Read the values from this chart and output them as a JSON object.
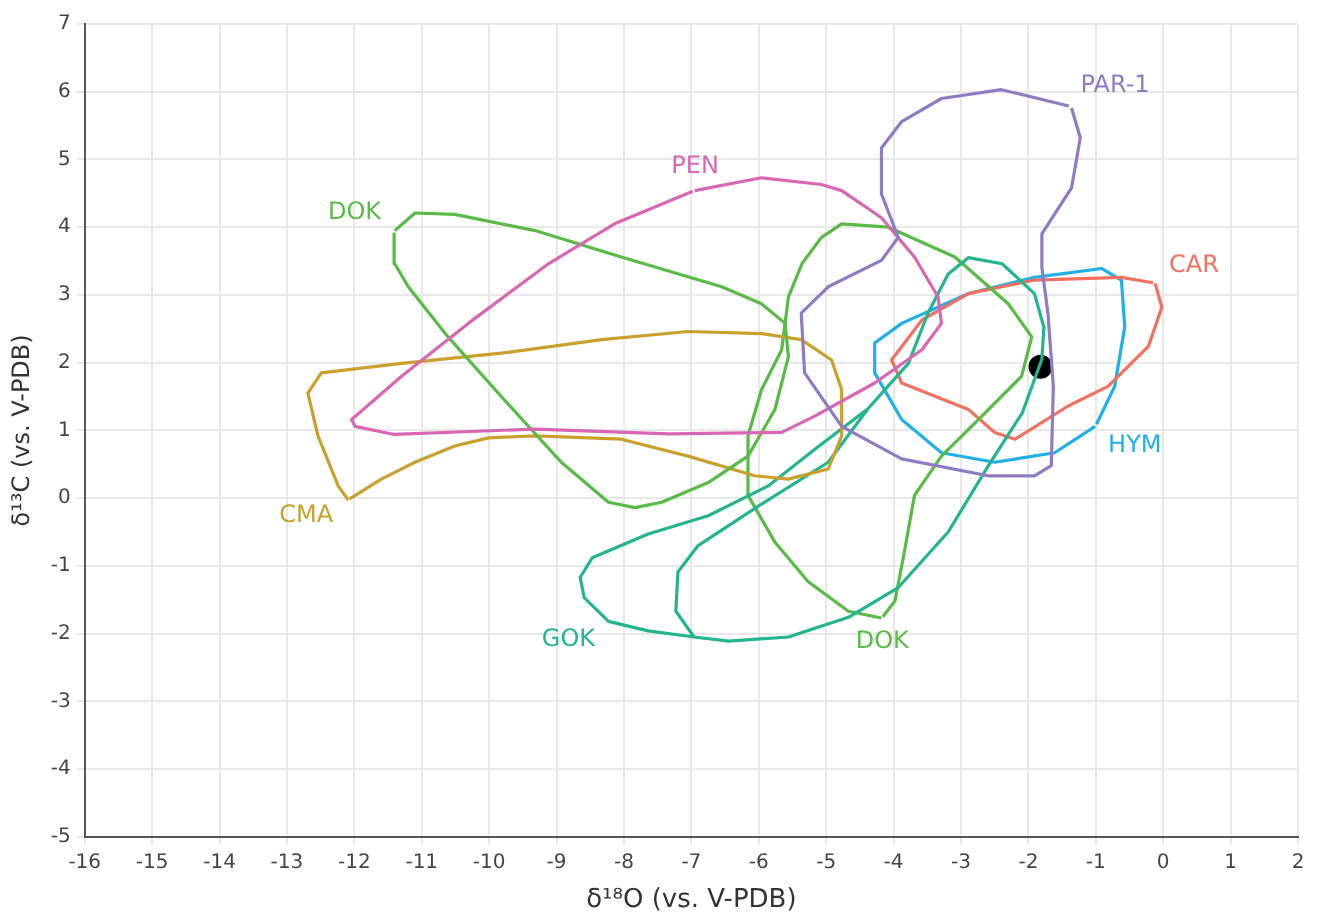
{
  "chart_data": {
    "type": "line",
    "xlabel": "δ¹⁸O (vs. V-PDB)",
    "ylabel": "δ¹³C (vs. V-PDB)",
    "xlim": [
      -16,
      2
    ],
    "ylim": [
      -5,
      7
    ],
    "xticks": [
      -16,
      -15,
      -14,
      -13,
      -12,
      -11,
      -10,
      -9,
      -8,
      -7,
      -6,
      -5,
      -4,
      -3,
      -2,
      -1,
      0,
      1,
      2
    ],
    "yticks": [
      -5,
      -4,
      -3,
      -2,
      -1,
      0,
      1,
      2,
      3,
      4,
      5,
      6,
      7
    ],
    "grid": true,
    "legend": false,
    "series": [
      {
        "name": "PAR-1",
        "color": "#8e7cc3",
        "x": [
          -1.36,
          -1.23,
          -1.36,
          -1.8,
          -1.8,
          -1.71,
          -1.63,
          -1.66,
          -1.91,
          -2.6,
          -3.88,
          -4.77,
          -5.32,
          -5.37,
          -4.97,
          -4.18,
          -3.93,
          -4.18,
          -4.18,
          -3.88,
          -3.29,
          -2.4,
          -1.4
        ],
        "values": [
          5.76,
          5.32,
          4.58,
          3.9,
          3.41,
          2.73,
          1.65,
          0.48,
          0.33,
          0.33,
          0.58,
          1.06,
          1.85,
          2.73,
          3.12,
          3.51,
          3.85,
          4.49,
          5.17,
          5.56,
          5.9,
          6.03,
          5.79
        ]
      },
      {
        "name": "PEN",
        "color": "#d966b2",
        "x": [
          -6.95,
          -5.96,
          -5.07,
          -4.77,
          -4.18,
          -3.69,
          -3.34,
          -3.29,
          -3.58,
          -4.28,
          -5.17,
          -5.66,
          -7.34,
          -9.32,
          -11.41,
          -11.99,
          -12.04,
          -11.3,
          -10.31,
          -9.12,
          -8.14,
          -6.98
        ],
        "values": [
          4.54,
          4.73,
          4.63,
          4.54,
          4.14,
          3.56,
          2.97,
          2.58,
          2.19,
          1.7,
          1.21,
          0.97,
          0.95,
          1.02,
          0.94,
          1.06,
          1.16,
          1.8,
          2.58,
          3.46,
          4.05,
          4.53
        ]
      },
      {
        "name": "DOK",
        "color": "#57bb45",
        "x": [
          -11.4,
          -11.1,
          -10.51,
          -9.32,
          -8.04,
          -6.55,
          -5.96,
          -5.61,
          -5.56,
          -5.76,
          -6.16,
          -6.75,
          -7.44,
          -7.84,
          -8.23,
          -8.93,
          -9.82,
          -10.61,
          -11.2,
          -11.4,
          -11.41
        ],
        "values": [
          3.95,
          4.21,
          4.19,
          3.95,
          3.56,
          3.12,
          2.87,
          2.58,
          2.09,
          1.31,
          0.62,
          0.23,
          -0.06,
          -0.14,
          -0.06,
          0.53,
          1.5,
          2.38,
          3.12,
          3.46,
          3.92
        ]
      },
      {
        "name": "CMA",
        "color": "#c9a02c",
        "x": [
          -12.09,
          -12.24,
          -12.54,
          -12.69,
          -12.49,
          -11.3,
          -9.82,
          -8.33,
          -7.05,
          -5.96,
          -5.37,
          -4.92,
          -4.77,
          -4.77,
          -4.97,
          -5.56,
          -6.06,
          -7.05,
          -8.04,
          -9.32,
          -10.01,
          -10.51,
          -11.1,
          -11.6,
          -12.07
        ],
        "values": [
          -0.03,
          0.18,
          0.92,
          1.55,
          1.85,
          1.99,
          2.14,
          2.34,
          2.46,
          2.43,
          2.34,
          2.04,
          1.6,
          0.92,
          0.43,
          0.28,
          0.33,
          0.62,
          0.87,
          0.92,
          0.89,
          0.77,
          0.53,
          0.28,
          -0.01
        ]
      },
      {
        "name": "GOK",
        "color": "#22b58e",
        "x": [
          -8.23,
          -8.59,
          -8.65,
          -8.47,
          -7.64,
          -6.75,
          -5.86,
          -5.12,
          -4.38,
          -3.78,
          -3.49,
          -3.19,
          -2.89,
          -2.39,
          -1.91,
          -1.77,
          -1.8,
          -2.09,
          -2.6,
          -3.19,
          -3.93,
          -4.67,
          -5.56,
          -6.45,
          -6.96,
          -7.64,
          -8.23,
          -7.64,
          -6.96,
          -7.23,
          -7.2,
          -6.9,
          -6.01,
          -4.97,
          -4.38
        ],
        "values": [
          -1.82,
          -1.47,
          -1.17,
          -0.88,
          -0.53,
          -0.26,
          0.18,
          0.76,
          1.32,
          1.99,
          2.73,
          3.31,
          3.55,
          3.46,
          3.02,
          2.52,
          2.05,
          1.26,
          0.47,
          -0.5,
          -1.32,
          -1.76,
          -2.05,
          -2.11,
          -2.05,
          -1.96,
          -1.82,
          -1.96,
          -2.05,
          -1.67,
          -1.09,
          -0.7,
          -0.12,
          0.53,
          1.32
        ]
      },
      {
        "name": "DOK",
        "color": "#57bb45",
        "x": [
          -4.18,
          -4.67,
          -5.27,
          -5.76,
          -6.16,
          -6.16,
          -5.96,
          -5.66,
          -5.56,
          -5.36,
          -5.07,
          -4.77,
          -4.08,
          -3.09,
          -2.3,
          -1.95,
          -2.1,
          -2.69,
          -3.29,
          -3.69,
          -3.83,
          -3.98,
          -4.16
        ],
        "values": [
          -1.77,
          -1.67,
          -1.23,
          -0.65,
          0.04,
          0.92,
          1.6,
          2.19,
          2.97,
          3.46,
          3.85,
          4.05,
          4.0,
          3.56,
          2.87,
          2.38,
          1.8,
          1.21,
          0.62,
          0.04,
          -0.74,
          -1.52,
          -1.75
        ]
      },
      {
        "name": "CAR",
        "color": "#f2705f",
        "x": [
          -0.12,
          -0.02,
          -0.22,
          -0.82,
          -1.41,
          -2.2,
          -2.5,
          -2.89,
          -3.88,
          -4.03,
          -3.58,
          -2.89,
          -1.91,
          -0.62,
          -0.15
        ],
        "values": [
          3.17,
          2.82,
          2.24,
          1.65,
          1.36,
          0.87,
          0.97,
          1.31,
          1.7,
          2.04,
          2.63,
          3.02,
          3.22,
          3.26,
          3.18
        ]
      },
      {
        "name": "HYM",
        "color": "#1eb0e8",
        "x": [
          -1.01,
          -1.61,
          -2.5,
          -3.29,
          -3.88,
          -4.28,
          -4.28,
          -3.88,
          -2.89,
          -1.91,
          -0.91,
          -0.62,
          -0.57,
          -0.72,
          -0.99
        ],
        "values": [
          1.06,
          0.67,
          0.53,
          0.67,
          1.16,
          1.85,
          2.29,
          2.58,
          3.02,
          3.26,
          3.39,
          3.22,
          2.53,
          1.65,
          1.09
        ]
      },
      {
        "type": "scatter",
        "color": "#000000",
        "x": [
          -1.82
        ],
        "values": [
          1.94
        ]
      }
    ]
  }
}
